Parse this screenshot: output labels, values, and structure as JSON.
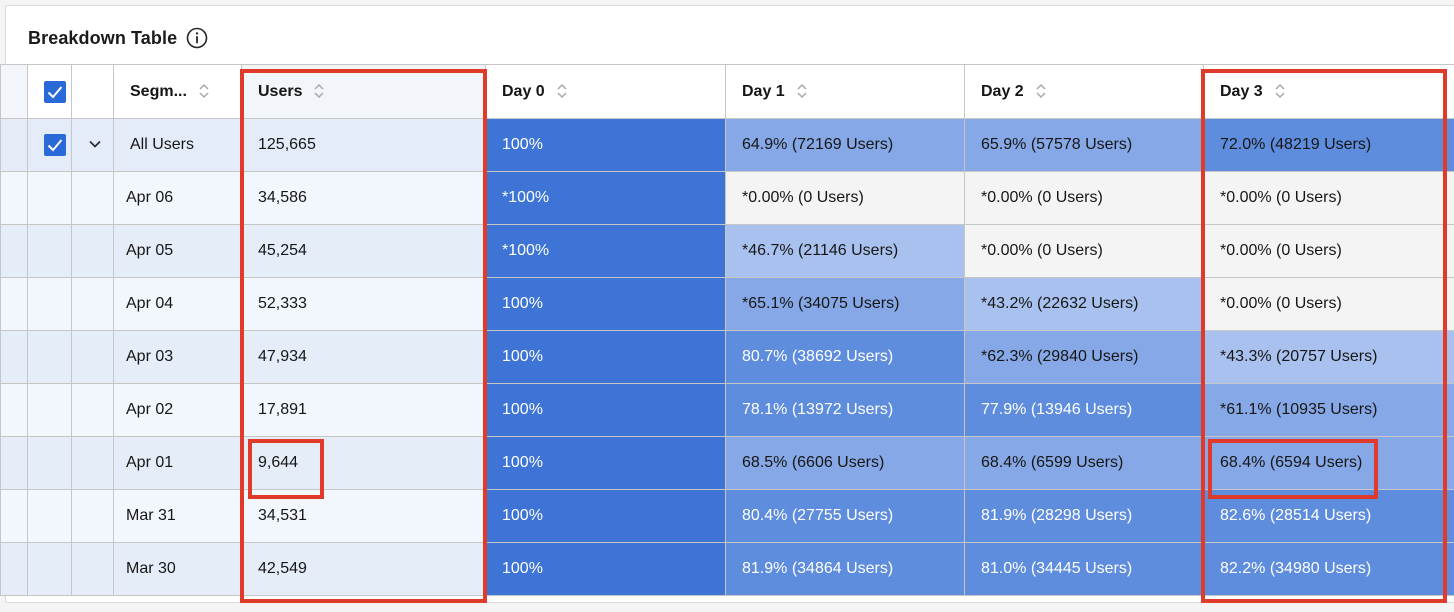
{
  "panel": {
    "title": "Breakdown Table",
    "info_icon": "info-icon"
  },
  "columns": {
    "segment": "Segm...",
    "users": "Users",
    "day0": "Day 0",
    "day1": "Day 1",
    "day2": "Day 2",
    "day3": "Day 3"
  },
  "total_row": {
    "segment": "All Users",
    "users": "125,665",
    "day0": "100%",
    "day1": "64.9% (72169 Users)",
    "day2": "65.9% (57578 Users)",
    "day3": "72.0% (48219 Users)"
  },
  "rows": [
    {
      "date": "Apr 06",
      "users": "34,586",
      "day0": "*100%",
      "day1": "*0.00% (0 Users)",
      "day2": "*0.00% (0 Users)",
      "day3": "*0.00% (0 Users)"
    },
    {
      "date": "Apr 05",
      "users": "45,254",
      "day0": "*100%",
      "day1": "*46.7% (21146 Users)",
      "day2": "*0.00% (0 Users)",
      "day3": "*0.00% (0 Users)"
    },
    {
      "date": "Apr 04",
      "users": "52,333",
      "day0": "100%",
      "day1": "*65.1% (34075 Users)",
      "day2": "*43.2% (22632 Users)",
      "day3": "*0.00% (0 Users)"
    },
    {
      "date": "Apr 03",
      "users": "47,934",
      "day0": "100%",
      "day1": "80.7% (38692 Users)",
      "day2": "*62.3% (29840 Users)",
      "day3": "*43.3% (20757 Users)"
    },
    {
      "date": "Apr 02",
      "users": "17,891",
      "day0": "100%",
      "day1": "78.1% (13972 Users)",
      "day2": "77.9% (13946 Users)",
      "day3": "*61.1% (10935 Users)"
    },
    {
      "date": "Apr 01",
      "users": "9,644",
      "day0": "100%",
      "day1": "68.5% (6606 Users)",
      "day2": "68.4% (6599 Users)",
      "day3": "68.4% (6594 Users)"
    },
    {
      "date": "Mar 31",
      "users": "34,531",
      "day0": "100%",
      "day1": "80.4% (27755 Users)",
      "day2": "81.9% (28298 Users)",
      "day3": "82.6% (28514 Users)"
    },
    {
      "date": "Mar 30",
      "users": "42,549",
      "day0": "100%",
      "day1": "81.9% (34864 Users)",
      "day2": "81.0% (34445 Users)",
      "day3": "82.2% (34980 Users)"
    }
  ],
  "colors": {
    "checkbox": "#2a6ad8",
    "heat_full": "#3d74d6",
    "heat_high": "#5f8ddd",
    "heat_mid": "#86a8e6",
    "heat_low": "#a9c1ee",
    "heat_zero": "#f4f4f4",
    "highlight": "#e03a2b"
  }
}
